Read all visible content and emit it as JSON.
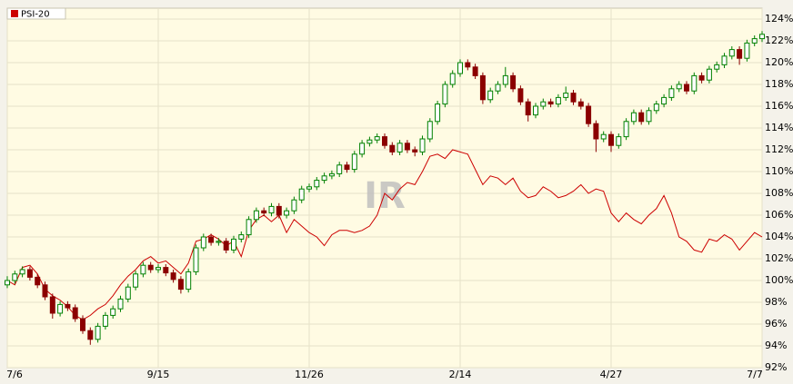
{
  "chart_data": {
    "type": "candlestick",
    "watermark": "IR",
    "categories": [
      "7/6",
      null,
      null,
      null,
      null,
      null,
      null,
      null,
      null,
      null,
      null,
      null,
      null,
      null,
      null,
      null,
      null,
      null,
      null,
      null,
      "9/15",
      null,
      null,
      null,
      null,
      null,
      null,
      null,
      null,
      null,
      null,
      null,
      null,
      null,
      null,
      null,
      null,
      null,
      null,
      null,
      "11/26",
      null,
      null,
      null,
      null,
      null,
      null,
      null,
      null,
      null,
      null,
      null,
      null,
      null,
      null,
      null,
      null,
      null,
      null,
      null,
      "2/14",
      null,
      null,
      null,
      null,
      null,
      null,
      null,
      null,
      null,
      null,
      null,
      null,
      null,
      null,
      null,
      null,
      null,
      null,
      null,
      "4/27",
      null,
      null,
      null,
      null,
      null,
      null,
      null,
      null,
      null,
      null,
      null,
      null,
      null,
      null,
      null,
      null,
      null,
      null,
      null,
      "7/7"
    ],
    "candles": {
      "up_color": "#008000",
      "down_color": "#8b0000",
      "open": [
        99.6,
        100.0,
        100.6,
        101.0,
        100.3,
        99.6,
        98.5,
        97.0,
        97.8,
        97.5,
        96.5,
        95.4,
        94.6,
        95.8,
        96.8,
        97.4,
        98.3,
        99.4,
        100.6,
        101.4,
        101.0,
        101.2,
        100.7,
        100.1,
        99.2,
        100.8,
        103.0,
        104.0,
        103.5,
        103.6,
        102.8,
        103.8,
        104.2,
        105.6,
        106.4,
        106.2,
        106.8,
        106.0,
        106.4,
        107.4,
        108.4,
        108.6,
        109.2,
        109.6,
        109.8,
        110.6,
        110.2,
        111.6,
        112.6,
        112.9,
        113.2,
        112.4,
        111.8,
        112.6,
        112.0,
        111.8,
        113.0,
        114.6,
        116.2,
        118.0,
        119.0,
        120.0,
        119.6,
        118.8,
        116.6,
        117.4,
        118.0,
        118.8,
        117.6,
        116.4,
        115.2,
        116.0,
        116.4,
        116.2,
        116.8,
        117.2,
        116.4,
        116.0,
        114.4,
        113.0,
        113.4,
        112.4,
        113.2,
        114.6,
        115.4,
        114.6,
        115.6,
        116.2,
        116.8,
        117.6,
        118.0,
        117.4,
        118.8,
        118.4,
        119.4,
        119.8,
        120.6,
        121.2,
        120.4,
        121.8,
        122.2
      ],
      "high": [
        100.4,
        100.9,
        101.3,
        101.3,
        100.6,
        99.9,
        98.8,
        98.1,
        98.1,
        97.8,
        96.8,
        95.7,
        96.1,
        97.1,
        97.7,
        98.6,
        99.7,
        100.9,
        101.7,
        101.7,
        101.5,
        101.5,
        101.0,
        100.4,
        101.1,
        103.3,
        104.3,
        104.3,
        103.9,
        103.9,
        104.1,
        104.5,
        105.9,
        106.7,
        106.7,
        107.1,
        107.1,
        106.7,
        107.7,
        108.7,
        108.9,
        109.5,
        109.9,
        110.1,
        110.9,
        110.9,
        111.9,
        112.9,
        113.2,
        113.5,
        113.5,
        112.7,
        112.9,
        112.9,
        112.3,
        113.3,
        114.9,
        116.5,
        118.3,
        119.3,
        120.3,
        120.3,
        119.9,
        119.1,
        117.7,
        118.3,
        119.6,
        119.1,
        117.9,
        116.7,
        116.3,
        116.7,
        116.7,
        117.1,
        117.8,
        117.5,
        116.7,
        116.3,
        114.7,
        113.7,
        113.7,
        113.5,
        114.9,
        115.7,
        115.7,
        115.9,
        116.5,
        117.1,
        117.9,
        118.3,
        118.3,
        119.1,
        119.1,
        119.7,
        120.1,
        120.9,
        121.5,
        121.5,
        122.1,
        122.5,
        122.9
      ],
      "low": [
        99.3,
        99.7,
        100.3,
        100.0,
        99.3,
        98.2,
        96.5,
        96.7,
        97.2,
        96.2,
        95.1,
        94.1,
        94.3,
        95.5,
        96.5,
        97.1,
        98.0,
        99.1,
        100.3,
        100.7,
        100.7,
        100.4,
        99.8,
        98.8,
        98.9,
        100.5,
        102.7,
        103.2,
        103.2,
        102.5,
        102.5,
        103.5,
        103.9,
        105.3,
        105.9,
        105.9,
        105.7,
        105.7,
        106.1,
        107.1,
        108.1,
        108.3,
        108.9,
        109.3,
        109.5,
        109.9,
        109.9,
        111.3,
        112.3,
        112.6,
        112.1,
        111.5,
        111.5,
        111.7,
        111.4,
        111.5,
        112.7,
        114.3,
        115.9,
        117.7,
        118.7,
        119.3,
        118.5,
        116.2,
        116.3,
        117.1,
        117.7,
        117.3,
        116.1,
        114.6,
        114.9,
        115.7,
        115.9,
        115.9,
        116.5,
        116.1,
        115.7,
        114.1,
        111.8,
        112.7,
        111.8,
        112.1,
        112.9,
        114.3,
        114.3,
        114.3,
        115.3,
        115.9,
        116.5,
        117.3,
        117.1,
        117.1,
        118.1,
        118.1,
        119.1,
        119.5,
        120.3,
        119.8,
        120.1,
        121.5,
        121.9
      ],
      "close": [
        100.0,
        100.6,
        101.0,
        100.3,
        99.6,
        98.5,
        97.0,
        97.8,
        97.5,
        96.5,
        95.4,
        94.6,
        95.8,
        96.8,
        97.4,
        98.3,
        99.4,
        100.6,
        101.4,
        101.0,
        101.2,
        100.7,
        100.1,
        99.2,
        100.8,
        103.0,
        104.0,
        103.5,
        103.6,
        102.8,
        103.8,
        104.2,
        105.6,
        106.4,
        106.2,
        106.8,
        106.0,
        106.4,
        107.4,
        108.4,
        108.6,
        109.2,
        109.6,
        109.8,
        110.6,
        110.2,
        111.6,
        112.6,
        112.9,
        113.2,
        112.4,
        111.8,
        112.6,
        112.0,
        111.8,
        113.0,
        114.6,
        116.2,
        118.0,
        119.0,
        120.0,
        119.6,
        118.8,
        116.6,
        117.4,
        118.0,
        118.8,
        117.6,
        116.4,
        115.2,
        116.0,
        116.4,
        116.2,
        116.8,
        117.2,
        116.4,
        116.0,
        114.4,
        113.0,
        113.4,
        112.4,
        113.2,
        114.6,
        115.4,
        114.6,
        115.6,
        116.2,
        116.8,
        117.6,
        118.0,
        117.4,
        118.8,
        118.4,
        119.4,
        119.8,
        120.6,
        121.2,
        120.4,
        121.8,
        122.2,
        122.6
      ]
    },
    "series": [
      {
        "name": "PSI-20",
        "color": "#cc0000",
        "values": [
          100.0,
          99.6,
          101.2,
          101.4,
          100.6,
          99.2,
          98.6,
          98.2,
          97.6,
          96.8,
          96.4,
          96.8,
          97.4,
          97.8,
          98.6,
          99.6,
          100.4,
          101.0,
          101.8,
          102.2,
          101.6,
          101.8,
          101.2,
          100.6,
          101.6,
          103.6,
          103.8,
          104.2,
          103.8,
          103.2,
          103.6,
          102.2,
          104.6,
          105.6,
          106.0,
          105.4,
          106.0,
          104.4,
          105.6,
          105.0,
          104.4,
          104.0,
          103.2,
          104.2,
          104.6,
          104.6,
          104.4,
          104.6,
          105.0,
          106.0,
          108.0,
          107.4,
          108.4,
          109.0,
          108.8,
          110.0,
          111.4,
          111.6,
          111.2,
          112.0,
          111.8,
          111.6,
          110.2,
          108.8,
          109.6,
          109.4,
          108.8,
          109.4,
          108.2,
          107.6,
          107.8,
          108.6,
          108.2,
          107.6,
          107.8,
          108.2,
          108.8,
          108.0,
          108.4,
          108.2,
          106.2,
          105.4,
          106.2,
          105.6,
          105.2,
          106.0,
          106.6,
          107.8,
          106.2,
          104.0,
          103.6,
          102.8,
          102.6,
          103.8,
          103.6,
          104.2,
          103.8,
          102.8,
          103.6,
          104.4,
          104.0
        ]
      }
    ],
    "ylim": [
      92,
      124
    ],
    "yticks": [
      {
        "value": 92,
        "label": "92%"
      },
      {
        "value": 94,
        "label": "94%"
      },
      {
        "value": 96,
        "label": "96%"
      },
      {
        "value": 98,
        "label": "98%"
      },
      {
        "value": 100,
        "label": "100%"
      },
      {
        "value": 102,
        "label": "102%"
      },
      {
        "value": 104,
        "label": "104%"
      },
      {
        "value": 106,
        "label": "106%"
      },
      {
        "value": 108,
        "label": "108%"
      },
      {
        "value": 110,
        "label": "110%"
      },
      {
        "value": 112,
        "label": "112%"
      },
      {
        "value": 114,
        "label": "114%"
      },
      {
        "value": 116,
        "label": "116%"
      },
      {
        "value": 118,
        "label": "118%"
      },
      {
        "value": 120,
        "label": "120%"
      },
      {
        "value": 122,
        "label": "122%"
      },
      {
        "value": 124,
        "label": "124%"
      }
    ],
    "grid": true,
    "legend": "top-left"
  }
}
